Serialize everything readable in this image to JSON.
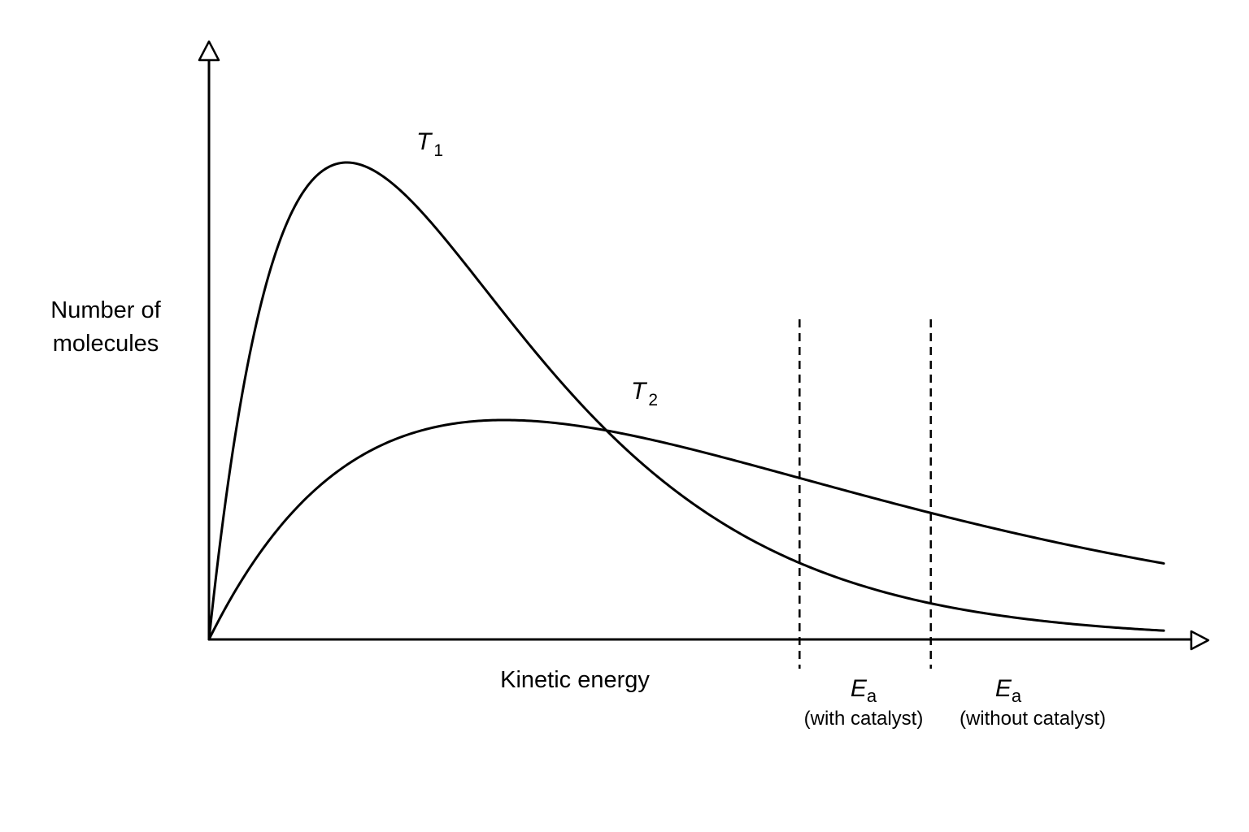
{
  "chart_data": {
    "type": "line",
    "title": "",
    "ylabel_lines": [
      "Number of",
      "molecules"
    ],
    "xlabel": "Kinetic energy",
    "series": [
      {
        "name": "T1",
        "label_main": "T",
        "label_sub": "1",
        "mode_energy": 2.1,
        "peak": 1.0
      },
      {
        "name": "T2",
        "label_main": "T",
        "label_sub": "2",
        "mode_energy": 4.5,
        "peak": 0.46
      }
    ],
    "markers": [
      {
        "main": "E",
        "sub": "a",
        "caption": "(with catalyst)",
        "energy": 9.0,
        "style": "dashed"
      },
      {
        "main": "E",
        "sub": "a",
        "caption": "(without catalyst)",
        "energy": 11.0,
        "style": "dashed"
      }
    ],
    "xlim": [
      0,
      14
    ],
    "ylim": [
      0,
      1.1
    ],
    "grid": false,
    "ticks": false,
    "legend": "none (curves labelled directly)"
  },
  "colors": {
    "line": "#000000",
    "background": "#ffffff"
  }
}
